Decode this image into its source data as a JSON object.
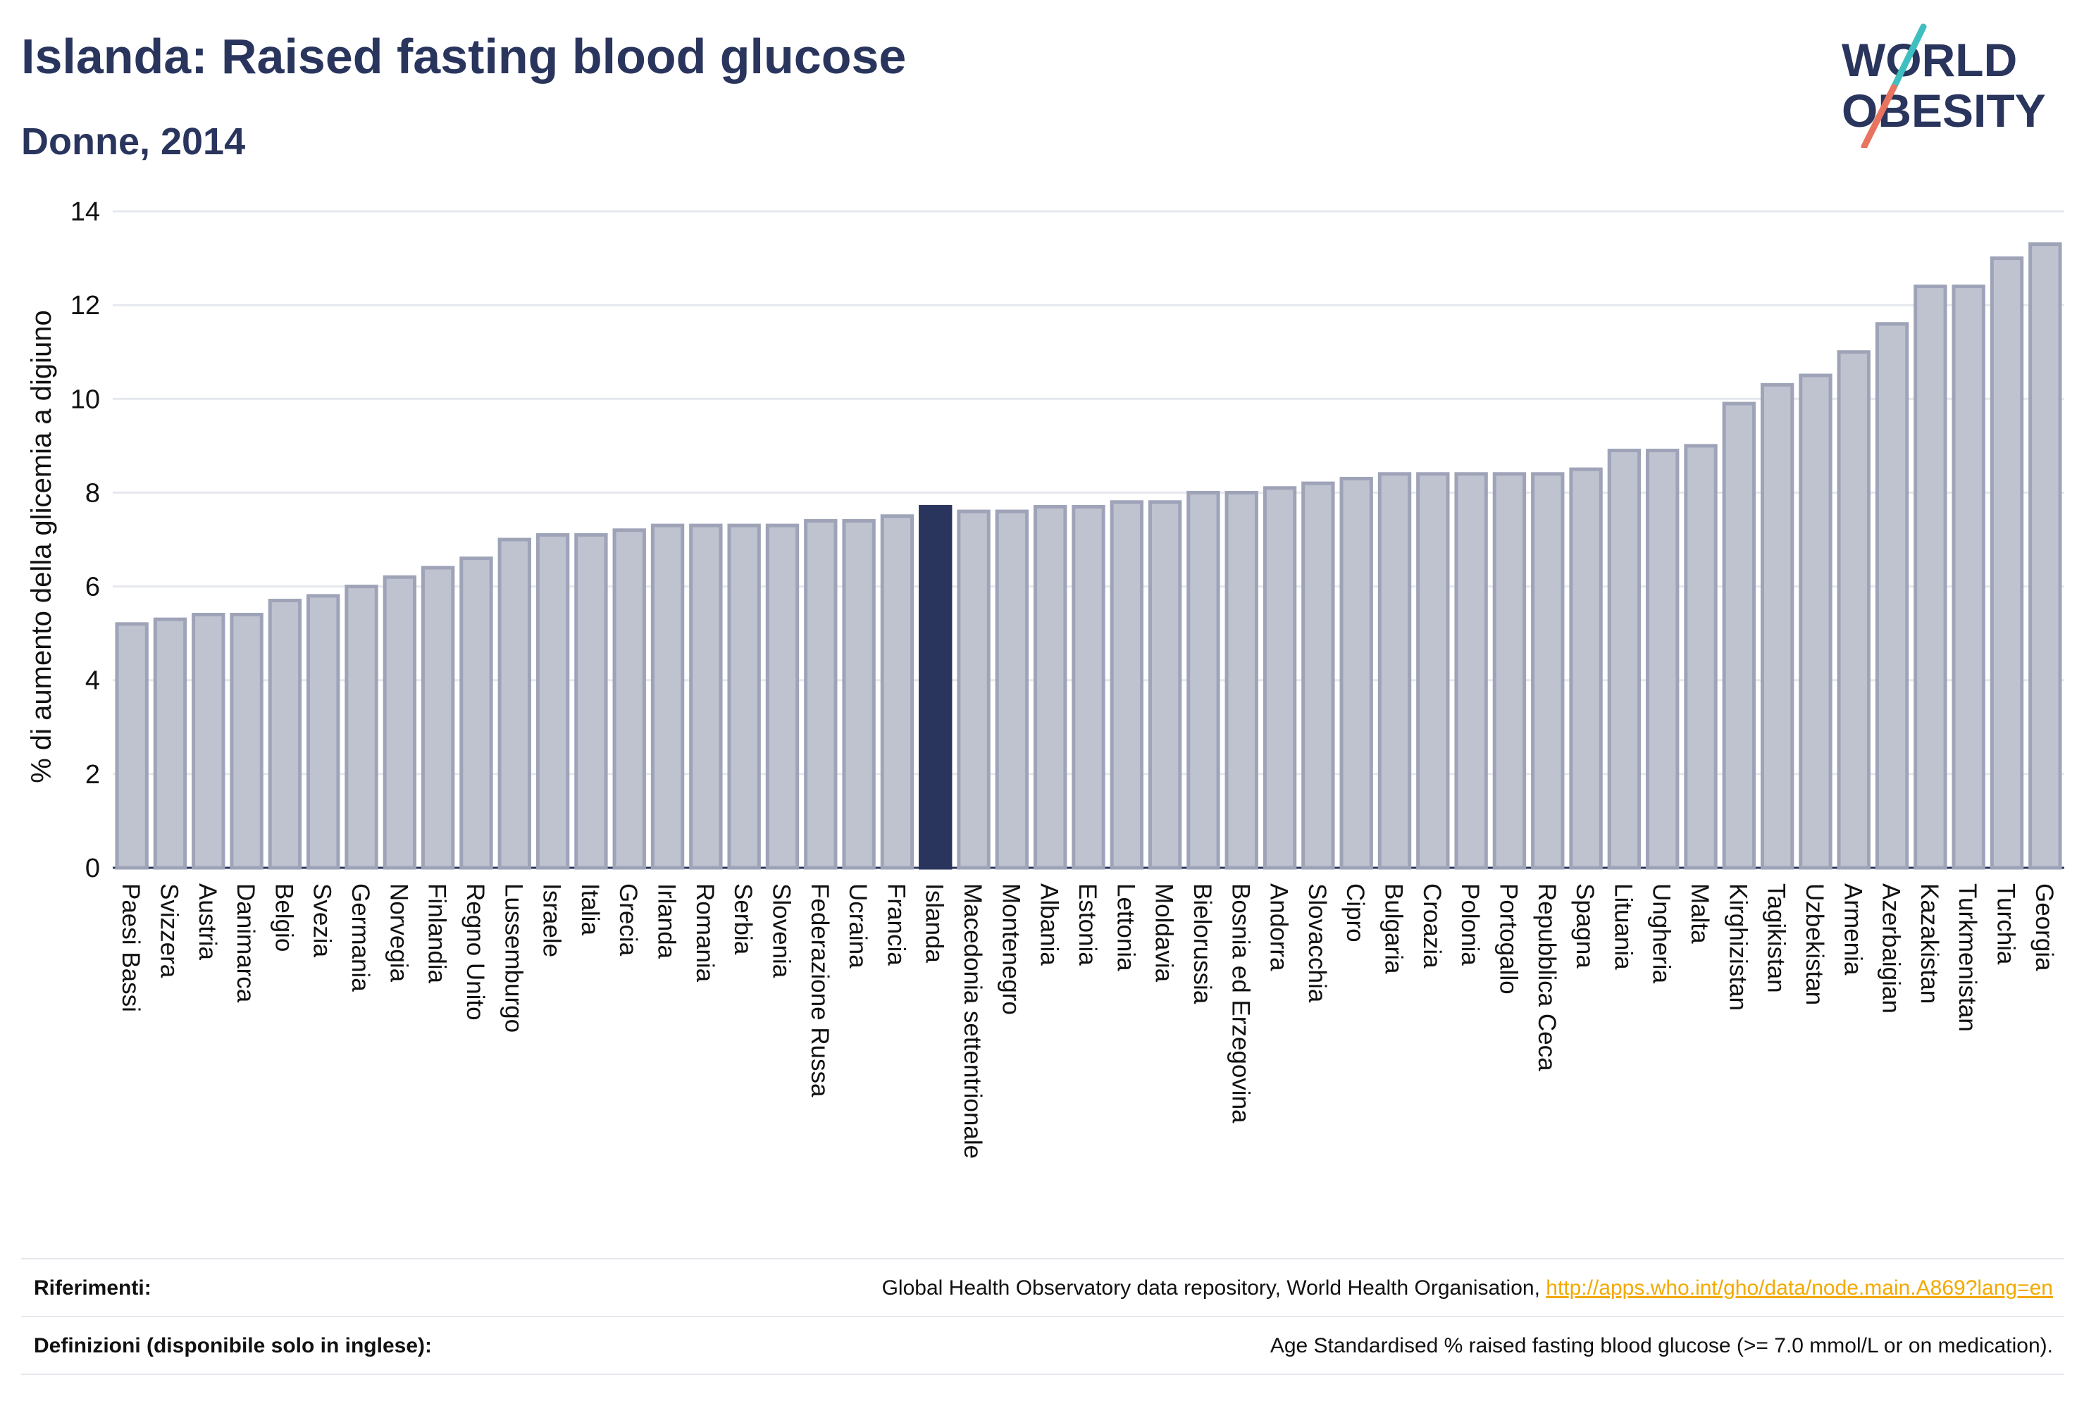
{
  "header": {
    "title": "Islanda: Raised fasting blood glucose",
    "subtitle": "Donne, 2014"
  },
  "logo": {
    "line1": "WORLD",
    "line2": "OBESITY",
    "colors": {
      "text": "#2a355d",
      "slash_teal": "#3fbfbf",
      "slash_coral": "#e8735e"
    }
  },
  "chart_data": {
    "type": "bar",
    "ylabel": "% di aumento della glicemia a digiuno",
    "xlabel": "",
    "ylim": [
      0,
      14
    ],
    "yticks": [
      0,
      2,
      4,
      6,
      8,
      10,
      12,
      14
    ],
    "grid": true,
    "highlight": "Islanda",
    "colors": {
      "bar": "#bfc3d0",
      "bar_edge": "#9ea3b8",
      "highlight": "#2a355d",
      "grid": "#e6e8ef"
    },
    "categories": [
      "Paesi Bassi",
      "Svizzera",
      "Austria",
      "Danimarca",
      "Belgio",
      "Svezia",
      "Germania",
      "Norvegia",
      "Finlandia",
      "Regno Unito",
      "Lussemburgo",
      "Israele",
      "Italia",
      "Grecia",
      "Irlanda",
      "Romania",
      "Serbia",
      "Slovenia",
      "Federazione Russa",
      "Ucraina",
      "Francia",
      "Islanda",
      "Macedonia settentrionale",
      "Montenegro",
      "Albania",
      "Estonia",
      "Lettonia",
      "Moldavia",
      "Bielorussia",
      "Bosnia ed Erzegovina",
      "Andorra",
      "Slovacchia",
      "Cipro",
      "Bulgaria",
      "Croazia",
      "Polonia",
      "Portogallo",
      "Repubblica Ceca",
      "Spagna",
      "Lituania",
      "Ungheria",
      "Malta",
      "Kirghizistan",
      "Tagikistan",
      "Uzbekistan",
      "Armenia",
      "Azerbaigian",
      "Kazakistan",
      "Turkmenistan",
      "Turchia",
      "Georgia"
    ],
    "values": [
      5.2,
      5.3,
      5.4,
      5.4,
      5.7,
      5.8,
      6.0,
      6.2,
      6.4,
      6.6,
      7.0,
      7.1,
      7.1,
      7.2,
      7.3,
      7.3,
      7.3,
      7.3,
      7.4,
      7.4,
      7.5,
      7.7,
      7.6,
      7.6,
      7.7,
      7.7,
      7.8,
      7.8,
      8.0,
      8.0,
      8.1,
      8.2,
      8.3,
      8.4,
      8.4,
      8.4,
      8.4,
      8.4,
      8.5,
      8.9,
      8.9,
      9.0,
      9.9,
      10.3,
      10.5,
      11.0,
      11.6,
      12.4,
      12.4,
      13.0,
      13.3
    ]
  },
  "footer": {
    "references_label": "Riferimenti:",
    "references_text": "Global Health Observatory data repository, World Health Organisation, ",
    "references_link": "http://apps.who.int/gho/data/node.main.A869?lang=en",
    "definitions_label": "Definizioni (disponibile solo in inglese):",
    "definitions_text": "Age Standardised % raised fasting blood glucose (>= 7.0 mmol/L or on medication)."
  }
}
